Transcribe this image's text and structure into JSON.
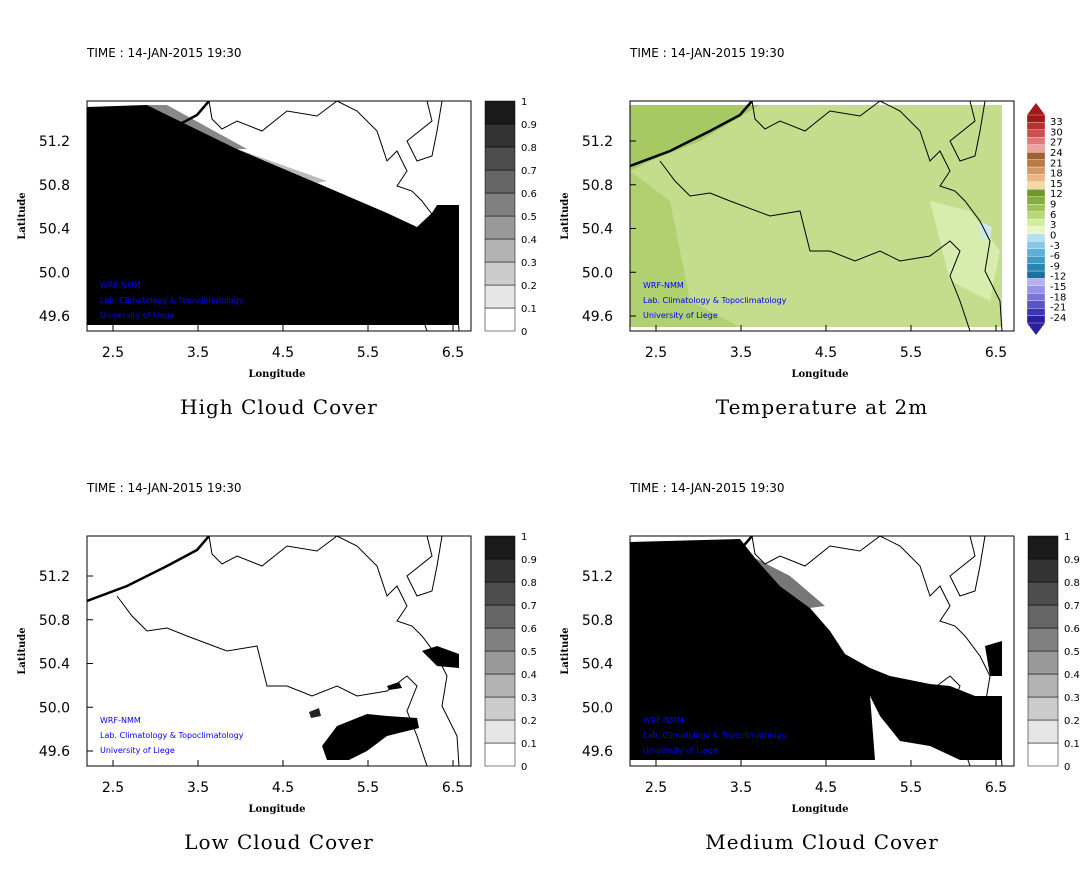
{
  "chart_data": [
    {
      "type": "heatmap",
      "title": "High Cloud Cover",
      "time": "TIME : 14-JAN-2015 19:30",
      "xlabel": "Longitude",
      "ylabel": "Latitude",
      "xticks": [
        "2.5",
        "3.5",
        "4.5",
        "5.5",
        "6.5"
      ],
      "yticks": [
        "51.2",
        "50.8",
        "50.4",
        "50.0",
        "49.6"
      ],
      "xlim": [
        2.2,
        6.7
      ],
      "ylim": [
        49.46,
        51.57
      ],
      "colorbar": {
        "labels": [
          "0",
          "0.1",
          "0.2",
          "0.3",
          "0.4",
          "0.5",
          "0.6",
          "0.7",
          "0.8",
          "0.9",
          "1"
        ]
      },
      "credits": [
        "WRF-NMM",
        "Lab. Climatology & Topoclimatology",
        "University of Liege"
      ]
    },
    {
      "type": "heatmap",
      "title": "Temperature at 2m",
      "time": "TIME : 14-JAN-2015 19:30",
      "xlabel": "Longitude",
      "ylabel": "Latitude",
      "xticks": [
        "2.5",
        "3.5",
        "4.5",
        "5.5",
        "6.5"
      ],
      "yticks": [
        "51.2",
        "50.8",
        "50.4",
        "50.0",
        "49.6"
      ],
      "xlim": [
        2.2,
        6.7
      ],
      "ylim": [
        49.46,
        51.57
      ],
      "colorbar": {
        "labels": [
          "33",
          "30",
          "27",
          "24",
          "21",
          "18",
          "15",
          "12",
          "9",
          "6",
          "3",
          "0",
          "-3",
          "-6",
          "-9",
          "-12",
          "-15",
          "-18",
          "-21",
          "-24"
        ]
      },
      "credits": [
        "WRF-NMM",
        "Lab. Climatology & Topoclimatology",
        "University of Liege"
      ]
    },
    {
      "type": "heatmap",
      "title": "Low Cloud Cover",
      "time": "TIME : 14-JAN-2015 19:30",
      "xlabel": "Longitude",
      "ylabel": "Latitude",
      "xticks": [
        "2.5",
        "3.5",
        "4.5",
        "5.5",
        "6.5"
      ],
      "yticks": [
        "51.2",
        "50.8",
        "50.4",
        "50.0",
        "49.6"
      ],
      "xlim": [
        2.2,
        6.7
      ],
      "ylim": [
        49.46,
        51.57
      ],
      "colorbar": {
        "labels": [
          "0",
          "0.1",
          "0.2",
          "0.3",
          "0.4",
          "0.5",
          "0.6",
          "0.7",
          "0.8",
          "0.9",
          "1"
        ]
      },
      "credits": [
        "WRF-NMM",
        "Lab. Climatology & Topoclimatology",
        "University of Liege"
      ]
    },
    {
      "type": "heatmap",
      "title": "Medium Cloud Cover",
      "time": "TIME : 14-JAN-2015 19:30",
      "xlabel": "Longitude",
      "ylabel": "Latitude",
      "xticks": [
        "2.5",
        "3.5",
        "4.5",
        "5.5",
        "6.5"
      ],
      "yticks": [
        "51.2",
        "50.8",
        "50.4",
        "50.0",
        "49.6"
      ],
      "xlim": [
        2.2,
        6.7
      ],
      "ylim": [
        49.46,
        51.57
      ],
      "colorbar": {
        "labels": [
          "0",
          "0.1",
          "0.2",
          "0.3",
          "0.4",
          "0.5",
          "0.6",
          "0.7",
          "0.8",
          "0.9",
          "1"
        ]
      },
      "credits": [
        "WRF-NMM",
        "Lab. Climatology & Topoclimatology",
        "University of Liege"
      ]
    }
  ],
  "colors": {
    "credit": "#0000ff",
    "temp_base": "#b8d67a"
  }
}
